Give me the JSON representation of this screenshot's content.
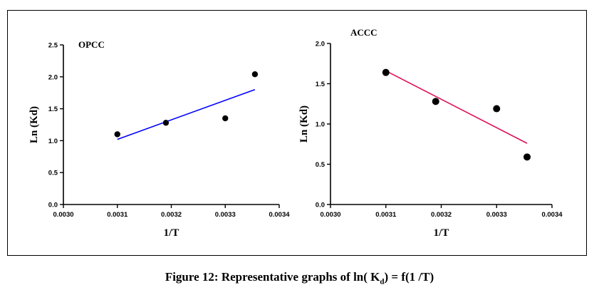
{
  "caption": {
    "prefix": "Figure 12: Representative graphs of ln( K",
    "subscript": "d",
    "suffix": ") = f(1 /T)"
  },
  "chart_data": [
    {
      "type": "scatter",
      "title": "OPCC",
      "xlabel": "1/T",
      "ylabel": "Ln (Kd)",
      "xlim": [
        0.003,
        0.0034
      ],
      "ylim": [
        0.0,
        2.5
      ],
      "xticks": [
        "0.0030",
        "0.0031",
        "0.0032",
        "0.0033",
        "0.0034"
      ],
      "yticks": [
        "0.0",
        "0.5",
        "1.0",
        "1.5",
        "2.0",
        "2.5"
      ],
      "points": {
        "x": [
          0.0031,
          0.00319,
          0.0033,
          0.003355
        ],
        "y": [
          1.1,
          1.28,
          1.35,
          2.04
        ]
      },
      "fit_line": {
        "x": [
          0.0031,
          0.003355
        ],
        "y": [
          1.02,
          1.8
        ],
        "color": "#0000ff"
      }
    },
    {
      "type": "scatter",
      "title": "ACCC",
      "xlabel": "1/T",
      "ylabel": "Ln (Kd)",
      "xlim": [
        0.003,
        0.0034
      ],
      "ylim": [
        0.0,
        2.0
      ],
      "xticks": [
        "0.0030",
        "0.0031",
        "0.0032",
        "0.0033",
        "0.0034"
      ],
      "yticks": [
        "0.0",
        "0.5",
        "1.0",
        "1.5",
        "2.0"
      ],
      "points": {
        "x": [
          0.0031,
          0.00319,
          0.0033,
          0.003355
        ],
        "y": [
          1.64,
          1.28,
          1.19,
          0.59
        ]
      },
      "fit_line": {
        "x": [
          0.0031,
          0.003355
        ],
        "y": [
          1.66,
          0.76
        ],
        "color": "#e0105a"
      }
    }
  ]
}
